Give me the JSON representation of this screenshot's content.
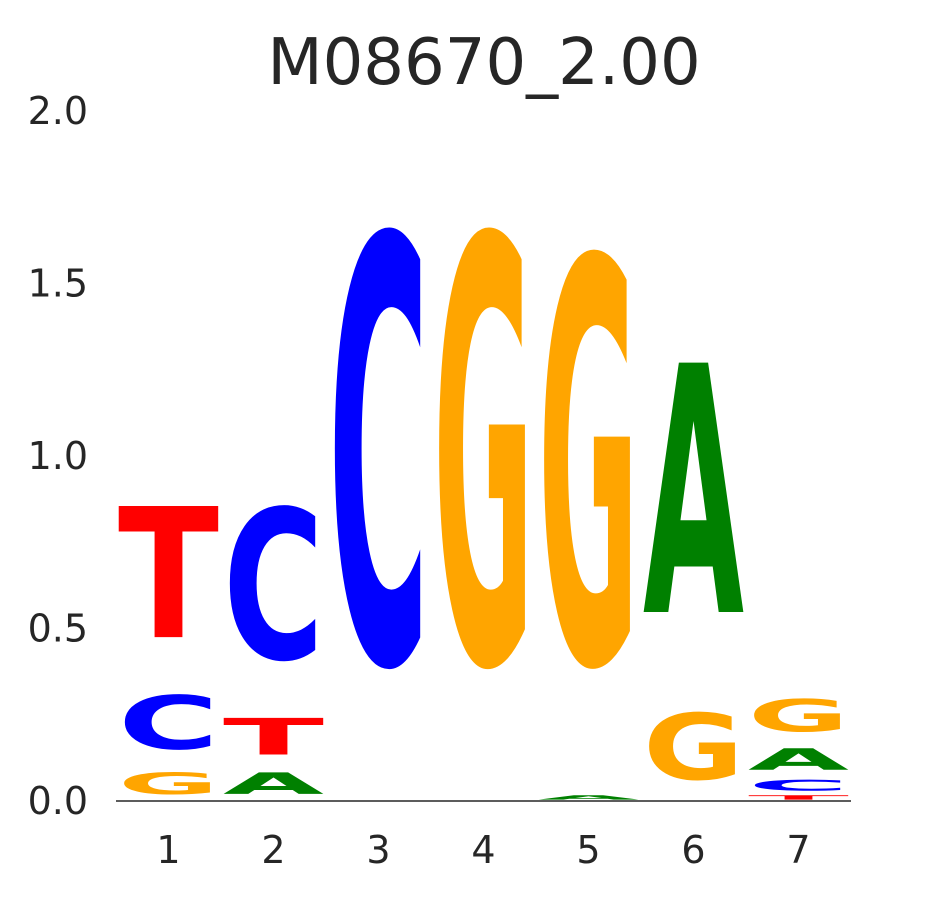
{
  "chart_data": {
    "type": "sequence-logo",
    "title": "M08670_2.00",
    "xlabel": "",
    "ylabel": "",
    "ylim": [
      0,
      2
    ],
    "yticks": [
      "0.0",
      "0.5",
      "1.0",
      "1.5",
      "2.0"
    ],
    "ytick_values": [
      0,
      0.5,
      1.0,
      1.5,
      2.0
    ],
    "grid": false,
    "colors": {
      "A": "#008000",
      "C": "#0000ff",
      "G": "#ffa500",
      "T": "#ff0000"
    },
    "positions": [
      {
        "label": "1",
        "letters": [
          {
            "base": "G",
            "height": 0.1
          },
          {
            "base": "C",
            "height": 0.25
          },
          {
            "base": "T",
            "height": 0.61
          }
        ]
      },
      {
        "label": "2",
        "letters": [
          {
            "base": "A",
            "height": 0.1
          },
          {
            "base": "T",
            "height": 0.17
          },
          {
            "base": "C",
            "height": 0.7
          }
        ]
      },
      {
        "label": "3",
        "letters": [
          {
            "base": "C",
            "height": 1.98
          }
        ]
      },
      {
        "label": "4",
        "letters": [
          {
            "base": "G",
            "height": 1.98
          }
        ]
      },
      {
        "label": "5",
        "letters": [
          {
            "base": "A",
            "height": 0.02
          },
          {
            "base": "G",
            "height": 1.88
          }
        ]
      },
      {
        "label": "6",
        "letters": [
          {
            "base": "G",
            "height": 0.31
          },
          {
            "base": "A",
            "height": 1.16
          }
        ]
      },
      {
        "label": "7",
        "letters": [
          {
            "base": "T",
            "height": 0.02
          },
          {
            "base": "C",
            "height": 0.05
          },
          {
            "base": "A",
            "height": 0.1
          },
          {
            "base": "G",
            "height": 0.15
          }
        ]
      }
    ]
  }
}
